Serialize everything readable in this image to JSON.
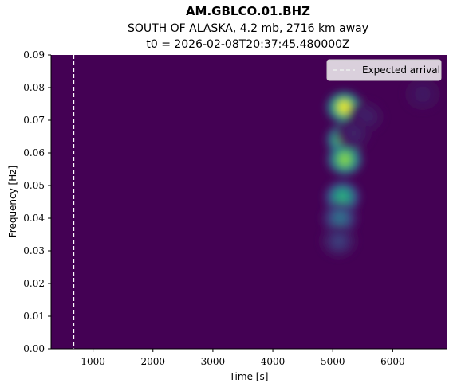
{
  "chart_data": {
    "type": "heatmap",
    "title": "AM.GBLCO.01.BHZ",
    "subtitle_line1": "SOUTH OF ALASKA, 4.2 mb, 2716 km away",
    "subtitle_line2": "t0 = 2026-02-08T20:37:45.480000Z",
    "xlabel": "Time [s]",
    "ylabel": "Frequency [Hz]",
    "xlim": [
      300,
      6900
    ],
    "ylim": [
      0.0,
      0.09
    ],
    "xticks": [
      1000,
      2000,
      3000,
      4000,
      5000,
      6000
    ],
    "yticks": [
      "0.00",
      "0.01",
      "0.02",
      "0.03",
      "0.04",
      "0.05",
      "0.06",
      "0.07",
      "0.08",
      "0.09"
    ],
    "colormap": "viridis",
    "expected_arrival_time": 680,
    "legend": {
      "label": "Expected arrival",
      "placement": "upper right"
    },
    "energy_blobs": [
      {
        "time": 5190,
        "freq": 0.074,
        "intensity": 1.0
      },
      {
        "time": 5190,
        "freq": 0.064,
        "intensity": 0.85
      },
      {
        "time": 5200,
        "freq": 0.058,
        "intensity": 0.8
      },
      {
        "time": 5160,
        "freq": 0.0465,
        "intensity": 0.55
      },
      {
        "time": 5120,
        "freq": 0.04,
        "intensity": 0.3
      },
      {
        "time": 5100,
        "freq": 0.033,
        "intensity": 0.15
      },
      {
        "time": 5550,
        "freq": 0.071,
        "intensity": 0.08
      },
      {
        "time": 5350,
        "freq": 0.066,
        "intensity": 0.08
      },
      {
        "time": 6500,
        "freq": 0.078,
        "intensity": 0.06
      }
    ]
  }
}
